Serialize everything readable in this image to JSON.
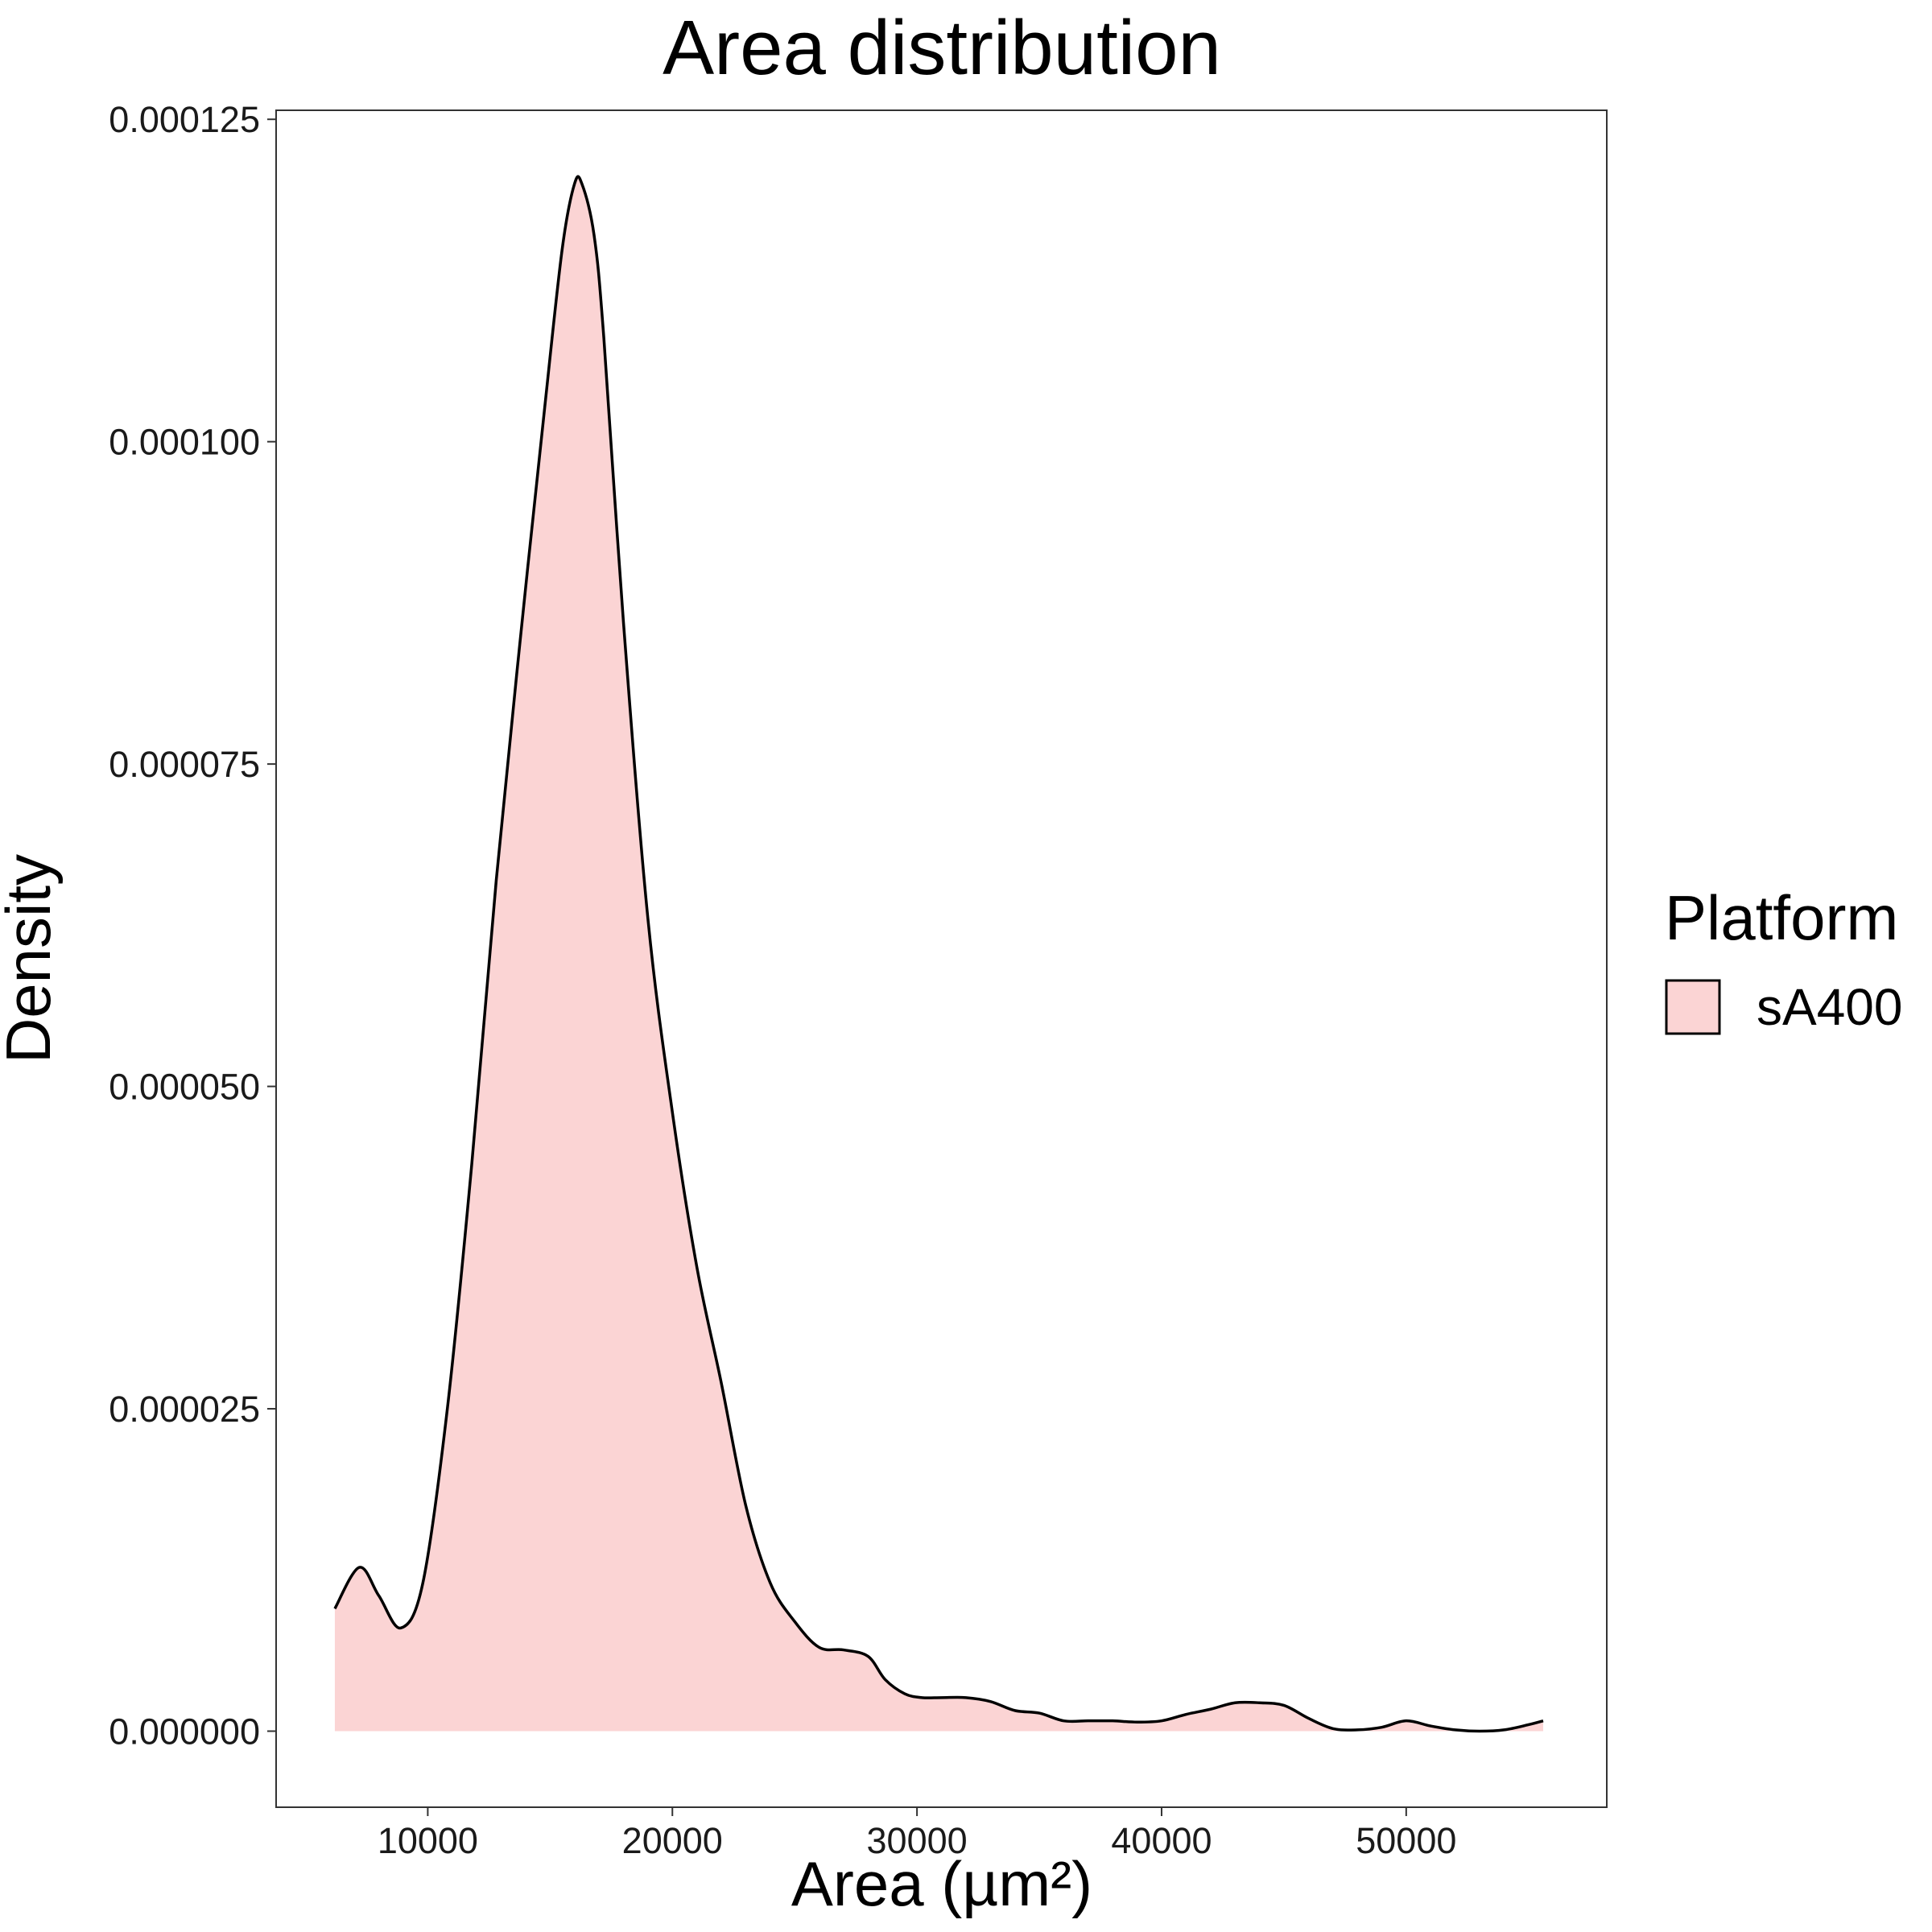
{
  "chart_data": {
    "type": "area",
    "title": "Area distribution",
    "xlabel": "Area (µm²)",
    "ylabel": "Density",
    "xlim": [
      3800,
      58200
    ],
    "ylim": [
      -5.9e-06,
      0.0001257
    ],
    "x_ticks": [
      10000,
      20000,
      30000,
      40000,
      50000
    ],
    "x_tick_labels": [
      "10000",
      "20000",
      "30000",
      "40000",
      "50000"
    ],
    "y_ticks": [
      0,
      2.5e-05,
      5e-05,
      7.5e-05,
      0.0001,
      0.000125
    ],
    "y_tick_labels": [
      "0.000000",
      "0.000025",
      "0.000050",
      "0.000075",
      "0.000100",
      "0.000125"
    ],
    "grid": false,
    "legend": {
      "title": "Platform",
      "position": "right"
    },
    "series": [
      {
        "name": "sA400",
        "fill": "#fbd4d4",
        "stroke": "#000000",
        "x": [
          6200,
          7200,
          8000,
          8900,
          9800,
          10800,
          11800,
          12800,
          13800,
          14800,
          15500,
          16000,
          16300,
          16800,
          17200,
          18000,
          19000,
          20000,
          21000,
          22000,
          23000,
          24000,
          25000,
          26000,
          27000,
          28000,
          28700,
          29500,
          30200,
          31000,
          32000,
          33000,
          34000,
          35000,
          36000,
          37000,
          38000,
          39000,
          40000,
          41000,
          42000,
          43000,
          44000,
          45000,
          46000,
          47000,
          48000,
          49000,
          50000,
          51000,
          52000,
          53000,
          54000,
          55000,
          55600
        ],
        "values": [
          9.5e-06,
          1.27e-05,
          1.05e-05,
          8e-06,
          1.15e-05,
          2.5e-05,
          4.4e-05,
          6.6e-05,
          8.5e-05,
          0.000103,
          0.000115,
          0.00012,
          0.00012,
          0.000116,
          0.000108,
          8.6e-05,
          6.3e-05,
          4.8e-05,
          3.6e-05,
          2.7e-05,
          1.75e-05,
          1.15e-05,
          8.5e-06,
          6.5e-06,
          6.3e-06,
          5.8e-06,
          4e-06,
          2.9e-06,
          2.6e-06,
          2.6e-06,
          2.6e-06,
          2.3e-06,
          1.6e-06,
          1.4e-06,
          8e-07,
          8e-07,
          8e-07,
          7e-07,
          8e-07,
          1.3e-06,
          1.7e-06,
          2.2e-06,
          2.2e-06,
          2e-06,
          1e-06,
          2e-07,
          1e-07,
          3e-07,
          8e-07,
          4e-07,
          1e-07,
          0.0,
          1e-07,
          5e-07,
          8e-07
        ]
      }
    ]
  }
}
